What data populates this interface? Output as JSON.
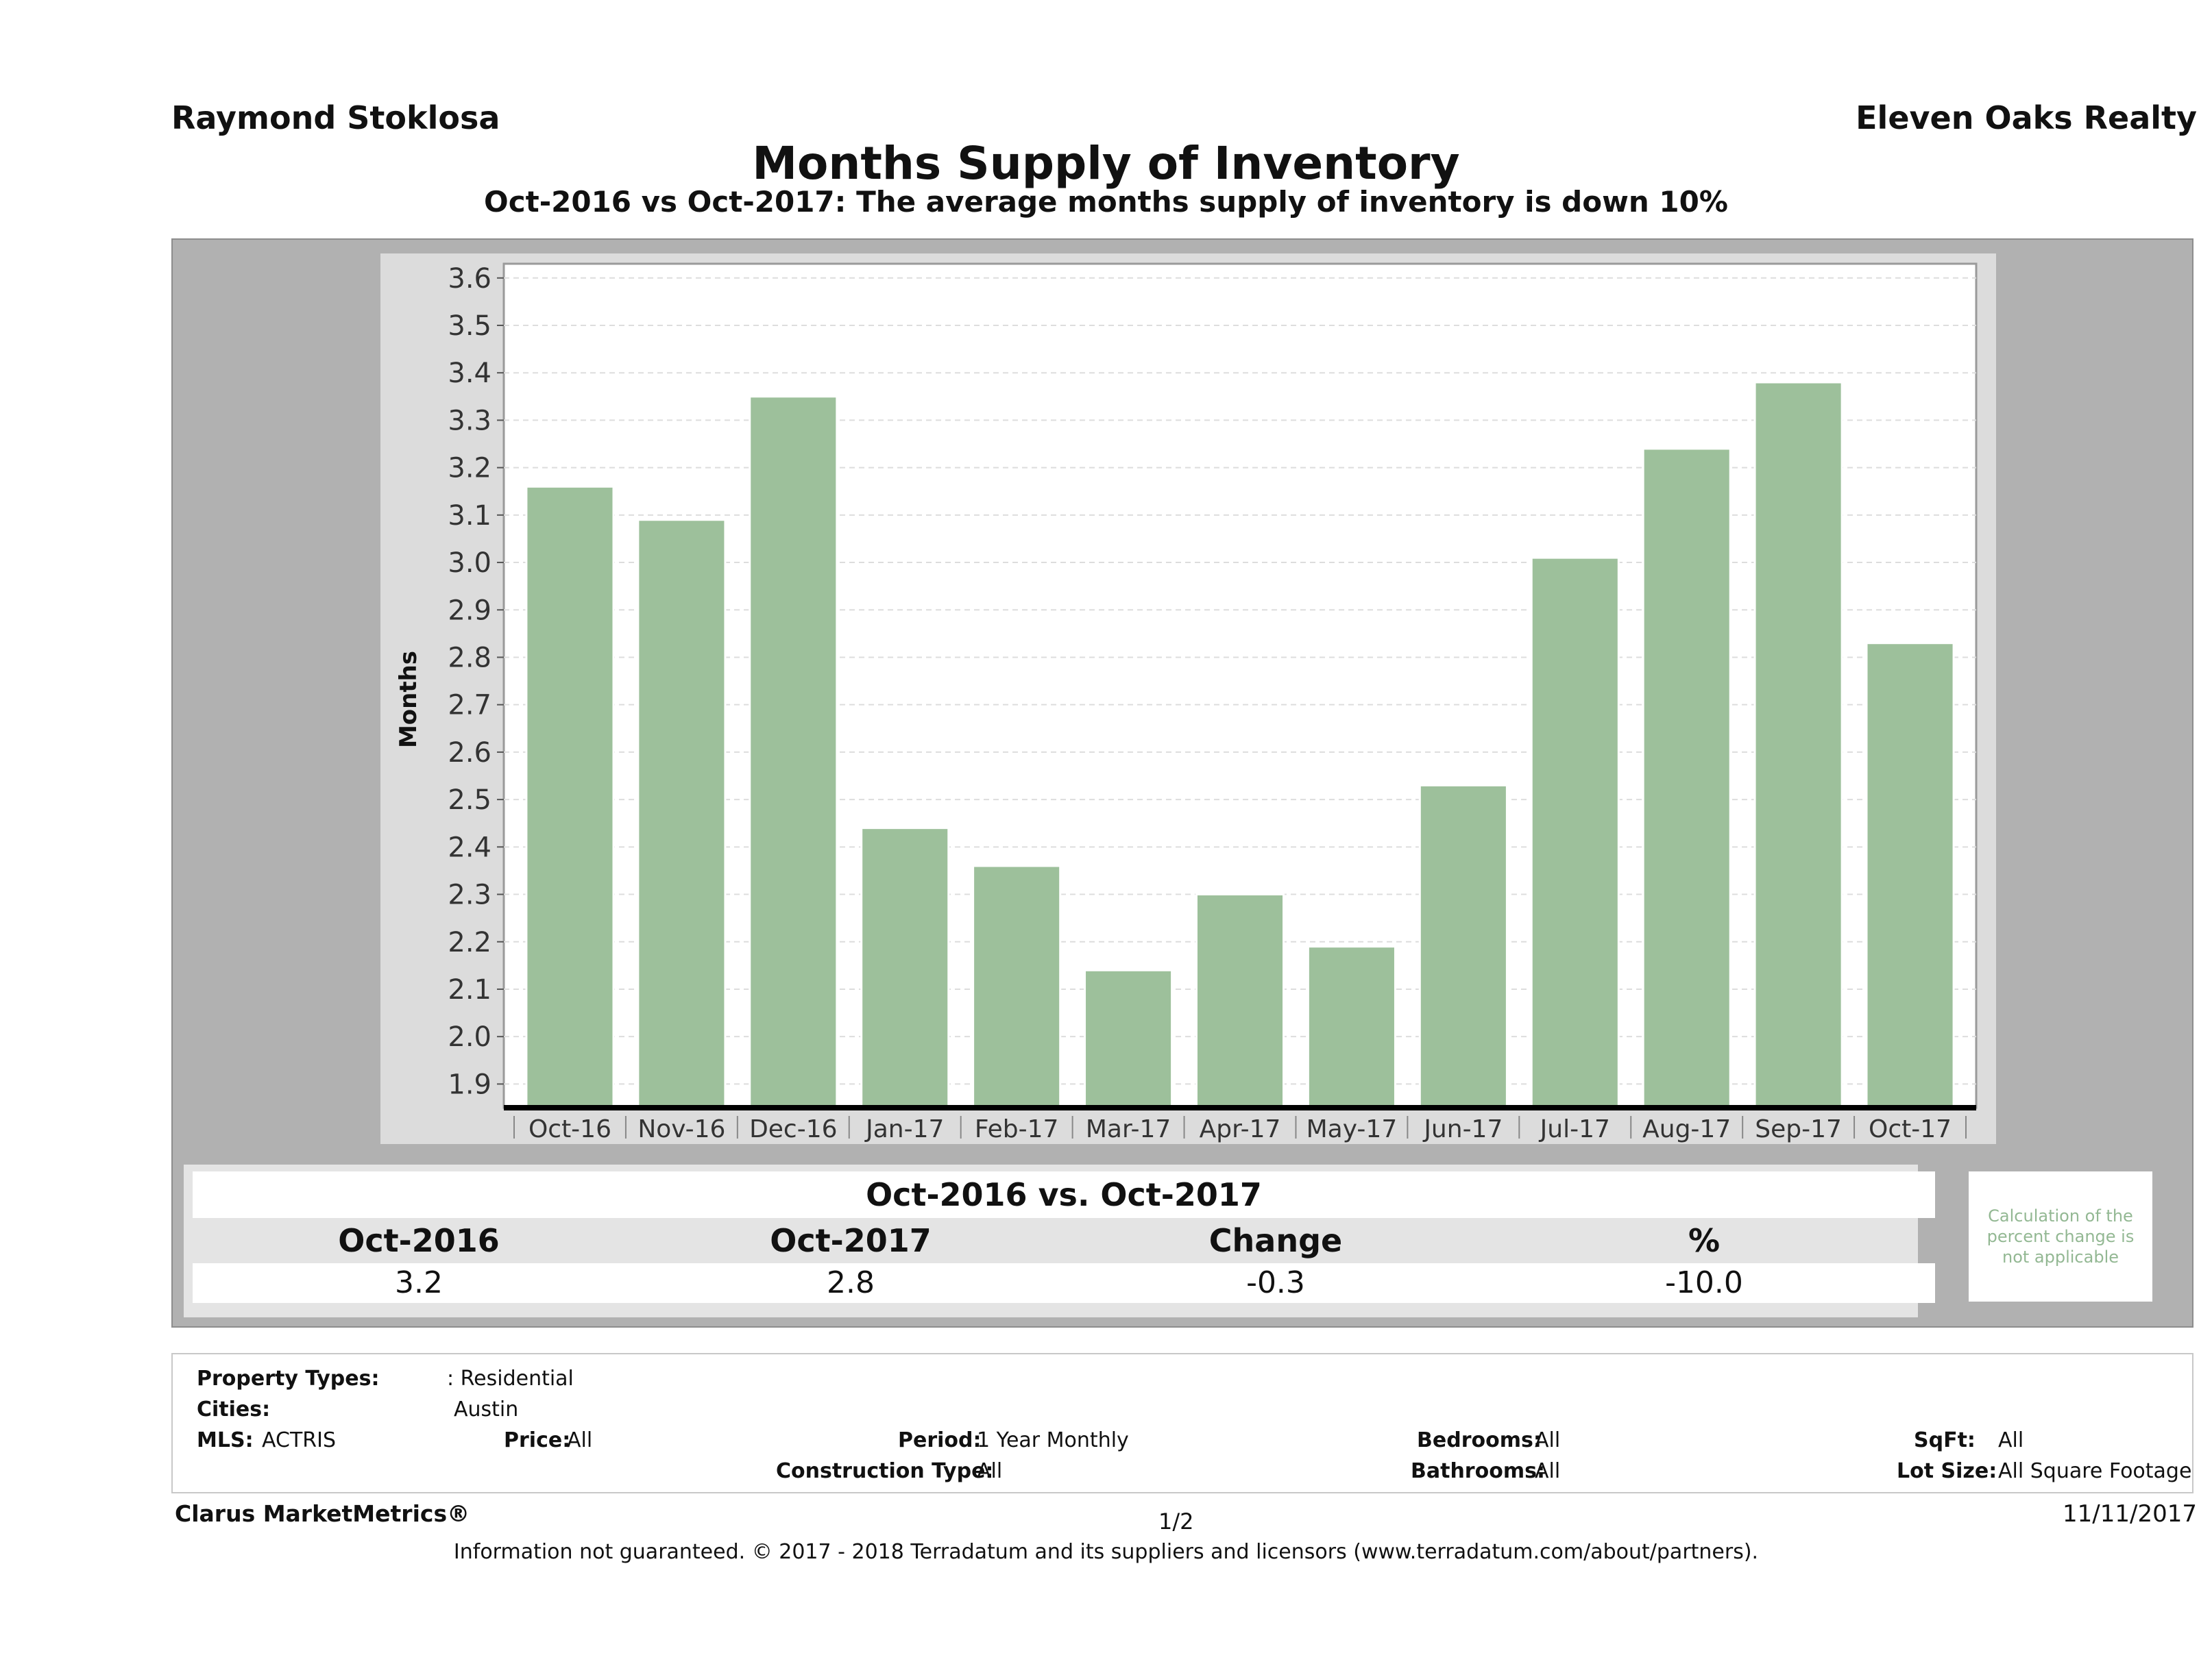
{
  "header": {
    "agent_name": "Raymond Stoklosa",
    "company": "Eleven Oaks Realty",
    "title": "Months Supply of Inventory",
    "subtitle": "Oct-2016 vs Oct-2017: The average months supply of inventory is down 10%"
  },
  "chart_data": {
    "type": "bar",
    "title": "Months Supply of Inventory",
    "xlabel": "",
    "ylabel": "Months",
    "ylim": [
      1.85,
      3.63
    ],
    "yticks": [
      "1.9",
      "2.0",
      "2.1",
      "2.2",
      "2.3",
      "2.4",
      "2.5",
      "2.6",
      "2.7",
      "2.8",
      "2.9",
      "3.0",
      "3.1",
      "3.2",
      "3.3",
      "3.4",
      "3.5",
      "3.6"
    ],
    "categories": [
      "Oct-16",
      "Nov-16",
      "Dec-16",
      "Jan-17",
      "Feb-17",
      "Mar-17",
      "Apr-17",
      "May-17",
      "Jun-17",
      "Jul-17",
      "Aug-17",
      "Sep-17",
      "Oct-17"
    ],
    "values": [
      3.16,
      3.09,
      3.35,
      2.44,
      2.36,
      2.14,
      2.3,
      2.19,
      2.53,
      3.01,
      3.24,
      3.38,
      2.83
    ],
    "bar_color": "#9dc09b",
    "grid": true
  },
  "summary": {
    "title": "Oct-2016 vs. Oct-2017",
    "headers": [
      "Oct-2016",
      "Oct-2017",
      "Change",
      "%"
    ],
    "values": [
      "3.2",
      "2.8",
      "-0.3",
      "-10.0"
    ],
    "note": "Calculation of the percent change is not applicable"
  },
  "criteria": {
    "property_types_label": "Property Types:",
    "property_types_value": ": Residential",
    "cities_label": "Cities:",
    "cities_value": "Austin",
    "mls_label": "MLS:",
    "mls_value": "ACTRIS",
    "price_label": "Price:",
    "price_value": "All",
    "period_label": "Period:",
    "period_value": "1 Year Monthly",
    "construction_label": "Construction Type:",
    "construction_value": "All",
    "bedrooms_label": "Bedrooms:",
    "bedrooms_value": "All",
    "bathrooms_label": "Bathrooms:",
    "bathrooms_value": "All",
    "sqft_label": "SqFt:",
    "sqft_value": "All",
    "lotsize_label": "Lot Size:",
    "lotsize_value": "All Square Footage"
  },
  "footer": {
    "brand": "Clarus MarketMetrics®",
    "page": "1/2",
    "date": "11/11/2017",
    "disclaimer": "Information not guaranteed. © 2017 - 2018 Terradatum and its suppliers and licensors (www.terradatum.com/about/partners)."
  }
}
